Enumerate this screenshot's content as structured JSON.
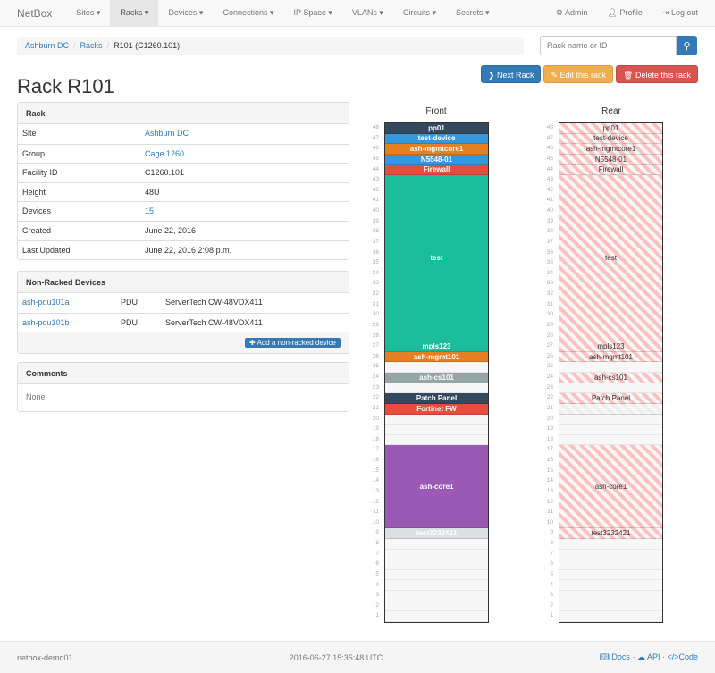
{
  "navbar": {
    "brand": "NetBox",
    "items": [
      "Sites ▾",
      "Racks ▾",
      "Devices ▾",
      "Connections ▾",
      "IP Space ▾",
      "VLANs ▾",
      "Circuits ▾",
      "Secrets ▾"
    ],
    "active": 1,
    "admin": "Admin",
    "profile": "Profile",
    "logout": "Log out"
  },
  "breadcrumb": [
    "Ashburn DC",
    "Racks",
    "R101 (C1260.101)"
  ],
  "search": {
    "placeholder": "Rack name or ID"
  },
  "actions": {
    "next": "Next Rack",
    "edit": "Edit this rack",
    "delete": "Delete this rack"
  },
  "colors": {
    "primary": "#337ab7",
    "warning": "#f0ad4e",
    "danger": "#d9534f"
  },
  "title": "Rack R101",
  "rack_panel": {
    "heading": "Rack",
    "rows": [
      {
        "k": "Site",
        "v": "Ashburn DC",
        "link": true
      },
      {
        "k": "Group",
        "v": "Cage 1260",
        "link": true
      },
      {
        "k": "Facility ID",
        "v": "C1260.101"
      },
      {
        "k": "Height",
        "v": "48U"
      },
      {
        "k": "Devices",
        "v": "15",
        "link": true
      },
      {
        "k": "Created",
        "v": "June 22, 2016"
      },
      {
        "k": "Last Updated",
        "v": "June 22, 2016 2:08 p.m."
      }
    ]
  },
  "nonracked": {
    "heading": "Non-Racked Devices",
    "rows": [
      {
        "name": "ash-pdu101a",
        "role": "PDU",
        "type": "ServerTech CW-48VDX411"
      },
      {
        "name": "ash-pdu101b",
        "role": "PDU",
        "type": "ServerTech CW-48VDX411"
      }
    ],
    "add": "Add a non-racked device"
  },
  "comments": {
    "heading": "Comments",
    "body": "None"
  },
  "rack": {
    "front_label": "Front",
    "rear_label": "Rear",
    "units": 48,
    "devices": [
      {
        "name": "pp01",
        "u": 48,
        "h": 1,
        "color": "#34495e"
      },
      {
        "name": "test-device",
        "u": 47,
        "h": 1,
        "color": "#3498db"
      },
      {
        "name": "ash-mgmtcore1",
        "u": 46,
        "h": 1,
        "color": "#e67e22"
      },
      {
        "name": "N5548-01",
        "u": 45,
        "h": 1,
        "color": "#3498db"
      },
      {
        "name": "Firewall",
        "u": 44,
        "h": 1,
        "color": "#e74c3c"
      },
      {
        "name": "test",
        "u": 43,
        "h": 16,
        "color": "#1abc9c"
      },
      {
        "name": "mpls123",
        "u": 27,
        "h": 1,
        "color": "#1abc9c"
      },
      {
        "name": "ash-mgmt101",
        "u": 26,
        "h": 1,
        "color": "#e67e22"
      },
      {
        "name": "ash-cs101",
        "u": 24,
        "h": 1,
        "color": "#95a5a6"
      },
      {
        "name": "Patch Panel",
        "u": 22,
        "h": 1,
        "color": "#34495e"
      },
      {
        "name": "Fortinet FW",
        "u": 21,
        "h": 1,
        "color": "#e74c3c",
        "front_only": true
      },
      {
        "name": "ash-core1",
        "u": 17,
        "h": 8,
        "color": "#9b59b6"
      },
      {
        "name": "test3232421",
        "u": 9,
        "h": 1,
        "color": "#dce0e3"
      }
    ]
  },
  "footer": {
    "host": "netbox-demo01",
    "time": "2016-06-27 15:35:48 UTC",
    "docs": "Docs",
    "api": "API",
    "code": "Code"
  }
}
